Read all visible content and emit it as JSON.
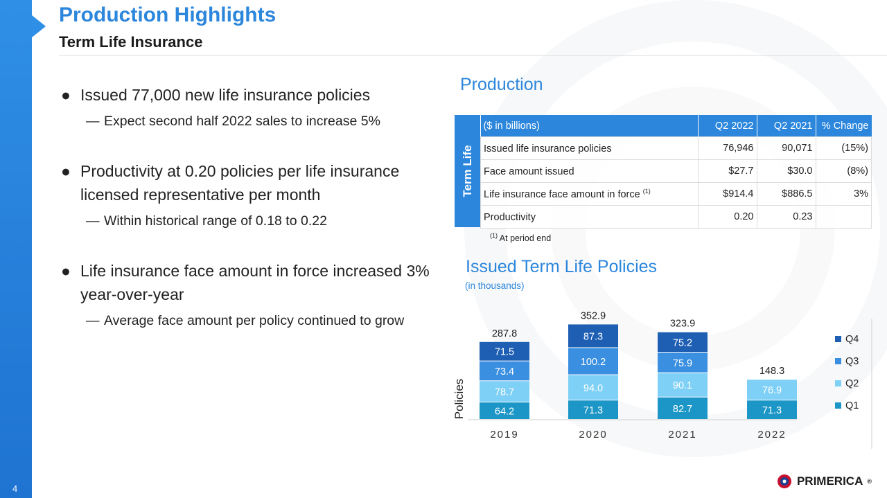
{
  "page": {
    "title": "Production Highlights",
    "subtitle": "Term Life Insurance",
    "page_number": "4"
  },
  "bullets": [
    {
      "text": "Issued 77,000 new life insurance policies",
      "sub": [
        "Expect second half 2022 sales to increase 5%"
      ]
    },
    {
      "text": "Productivity at 0.20 policies per life insurance licensed representative per month",
      "sub": [
        "Within historical range of 0.18 to 0.22"
      ]
    },
    {
      "text": "Life insurance face amount in force increased 3% year-over-year",
      "sub": [
        "Average face amount per policy continued to grow"
      ]
    }
  ],
  "production": {
    "title": "Production",
    "side_label": "Term Life",
    "headers": [
      "($ in billions)",
      "Q2 2022",
      "Q2 2021",
      "% Change"
    ],
    "rows": [
      {
        "label": "Issued life insurance policies",
        "sup": "",
        "q2_2022": "76,946",
        "q2_2021": "90,071",
        "change": "(15%)"
      },
      {
        "label": "Face amount issued",
        "sup": "",
        "q2_2022": "$27.7",
        "q2_2021": "$30.0",
        "change": "(8%)"
      },
      {
        "label": "Life insurance face amount in force",
        "sup": "(1)",
        "q2_2022": "$914.4",
        "q2_2021": "$886.5",
        "change": "3%"
      },
      {
        "label": "Productivity",
        "sup": "",
        "q2_2022": "0.20",
        "q2_2021": "0.23",
        "change": ""
      }
    ],
    "footnote_sup": "(1)",
    "footnote": "At period end"
  },
  "chart_data": {
    "type": "bar",
    "stacked": true,
    "title": "Issued Term Life Policies",
    "subtitle": "(in thousands)",
    "ylabel": "Policies",
    "categories": [
      "2019",
      "2020",
      "2021",
      "2022"
    ],
    "series": [
      {
        "name": "Q1",
        "color": "#1c96c6",
        "values": [
          64.2,
          71.3,
          82.7,
          71.3
        ]
      },
      {
        "name": "Q2",
        "color": "#7fd0f6",
        "values": [
          78.7,
          94.0,
          90.1,
          76.9
        ]
      },
      {
        "name": "Q3",
        "color": "#3a8fe0",
        "values": [
          73.4,
          100.2,
          75.9,
          null
        ]
      },
      {
        "name": "Q4",
        "color": "#1e5fb4",
        "values": [
          71.5,
          87.3,
          75.2,
          null
        ]
      }
    ],
    "totals": [
      287.8,
      352.9,
      323.9,
      148.3
    ],
    "legend": "right",
    "grid": false
  },
  "logo": {
    "text": "PRIMERICA",
    "mark": "®"
  },
  "colors": {
    "accent": "#2b86dc",
    "sidebar": "#1f73d1"
  }
}
